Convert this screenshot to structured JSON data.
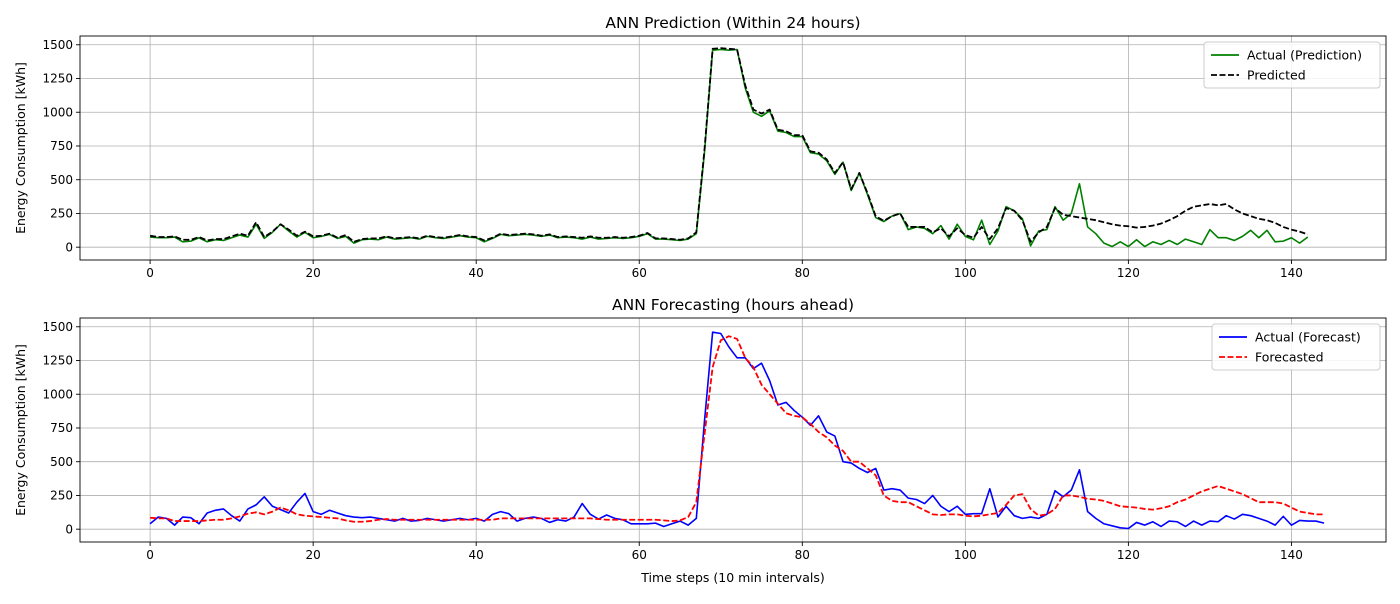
{
  "chart_data": [
    {
      "type": "line",
      "title": "ANN Prediction (Within 24 hours)",
      "xlabel": "",
      "ylabel": "Energy Consumption [kWh]",
      "xlim": [
        -8.6,
        151.6
      ],
      "ylim": [
        -95,
        1565
      ],
      "xticks": [
        0,
        20,
        40,
        60,
        80,
        100,
        120,
        140
      ],
      "yticks": [
        0,
        250,
        500,
        750,
        1000,
        1250,
        1500
      ],
      "grid": true,
      "legend_position": "top-right",
      "series": [
        {
          "name": "Actual (Prediction)",
          "color": "#008000",
          "dash": "solid",
          "values": [
            75,
            70,
            70,
            75,
            40,
            45,
            70,
            40,
            55,
            50,
            70,
            90,
            75,
            170,
            65,
            110,
            170,
            120,
            75,
            110,
            70,
            80,
            95,
            65,
            80,
            30,
            55,
            60,
            55,
            75,
            60,
            65,
            70,
            60,
            80,
            70,
            65,
            75,
            85,
            75,
            70,
            40,
            65,
            95,
            85,
            90,
            95,
            90,
            80,
            90,
            70,
            75,
            70,
            60,
            75,
            60,
            65,
            70,
            65,
            70,
            80,
            100,
            60,
            60,
            55,
            50,
            60,
            100,
            700,
            1460,
            1465,
            1460,
            1465,
            1180,
            1000,
            970,
            1010,
            860,
            850,
            820,
            820,
            700,
            690,
            640,
            540,
            630,
            420,
            550,
            390,
            220,
            190,
            230,
            250,
            130,
            150,
            140,
            100,
            160,
            60,
            170,
            80,
            55,
            200,
            20,
            120,
            300,
            270,
            210,
            10,
            120,
            130,
            300,
            200,
            250,
            470,
            150,
            100,
            30,
            5,
            40,
            5,
            55,
            5,
            40,
            20,
            50,
            20,
            60,
            40,
            20,
            130,
            70,
            70,
            50,
            80,
            125,
            70,
            125,
            40,
            45,
            70,
            30,
            75
          ]
        },
        {
          "name": "Predicted",
          "color": "#000000",
          "dash": "dashed",
          "values": [
            85,
            75,
            75,
            80,
            55,
            55,
            75,
            50,
            60,
            60,
            80,
            100,
            85,
            185,
            75,
            115,
            170,
            130,
            85,
            115,
            80,
            85,
            100,
            70,
            90,
            40,
            60,
            65,
            65,
            80,
            65,
            70,
            75,
            65,
            85,
            75,
            70,
            80,
            90,
            80,
            75,
            50,
            70,
            100,
            90,
            95,
            100,
            95,
            85,
            95,
            75,
            80,
            75,
            70,
            80,
            70,
            70,
            75,
            70,
            75,
            85,
            105,
            65,
            65,
            60,
            55,
            65,
            110,
            720,
            1470,
            1475,
            1470,
            1465,
            1200,
            1020,
            990,
            1020,
            870,
            860,
            830,
            830,
            710,
            700,
            650,
            550,
            630,
            430,
            550,
            400,
            230,
            195,
            230,
            250,
            150,
            150,
            150,
            110,
            140,
            80,
            140,
            90,
            70,
            150,
            60,
            140,
            290,
            270,
            200,
            40,
            110,
            150,
            290,
            240,
            230,
            220,
            210,
            200,
            185,
            170,
            160,
            155,
            145,
            150,
            160,
            175,
            200,
            230,
            270,
            300,
            310,
            320,
            310,
            320,
            280,
            250,
            230,
            210,
            200,
            180,
            150,
            130,
            115,
            95
          ]
        }
      ]
    },
    {
      "type": "line",
      "title": "ANN Forecasting (hours ahead)",
      "xlabel": "Time steps (10 min intervals)",
      "ylabel": "Energy Consumption [kWh]",
      "xlim": [
        -8.6,
        151.6
      ],
      "ylim": [
        -95,
        1565
      ],
      "xticks": [
        0,
        20,
        40,
        60,
        80,
        100,
        120,
        140
      ],
      "yticks": [
        0,
        250,
        500,
        750,
        1000,
        1250,
        1500
      ],
      "grid": true,
      "legend_position": "top-right",
      "series": [
        {
          "name": "Actual (Forecast)",
          "color": "#0000ff",
          "dash": "solid",
          "values": [
            40,
            90,
            80,
            30,
            90,
            85,
            40,
            120,
            140,
            150,
            100,
            60,
            150,
            180,
            240,
            170,
            145,
            120,
            200,
            265,
            130,
            110,
            140,
            120,
            100,
            90,
            85,
            90,
            80,
            70,
            60,
            80,
            60,
            65,
            80,
            70,
            60,
            70,
            80,
            70,
            80,
            60,
            110,
            130,
            115,
            60,
            80,
            90,
            80,
            50,
            70,
            60,
            90,
            190,
            110,
            75,
            105,
            80,
            70,
            40,
            40,
            40,
            45,
            20,
            40,
            60,
            30,
            80,
            800,
            1460,
            1450,
            1350,
            1270,
            1270,
            1190,
            1230,
            1100,
            920,
            940,
            880,
            830,
            770,
            840,
            720,
            690,
            500,
            490,
            450,
            420,
            450,
            290,
            300,
            290,
            230,
            220,
            190,
            250,
            170,
            130,
            170,
            110,
            115,
            115,
            300,
            90,
            170,
            100,
            80,
            90,
            80,
            110,
            285,
            240,
            290,
            440,
            130,
            80,
            40,
            25,
            10,
            5,
            50,
            30,
            55,
            20,
            60,
            55,
            20,
            60,
            30,
            60,
            55,
            100,
            75,
            110,
            100,
            80,
            60,
            30,
            95,
            30,
            65,
            60,
            60,
            45
          ]
        },
        {
          "name": "Forecasted",
          "color": "#ff0000",
          "dash": "dashed",
          "values": [
            85,
            80,
            80,
            60,
            60,
            60,
            60,
            65,
            70,
            70,
            80,
            95,
            115,
            125,
            110,
            130,
            160,
            140,
            110,
            100,
            95,
            90,
            85,
            80,
            65,
            55,
            55,
            60,
            70,
            75,
            70,
            70,
            70,
            70,
            70,
            70,
            70,
            70,
            70,
            70,
            70,
            70,
            70,
            80,
            80,
            80,
            80,
            80,
            80,
            80,
            80,
            80,
            80,
            80,
            80,
            75,
            70,
            70,
            70,
            70,
            70,
            70,
            70,
            65,
            60,
            65,
            90,
            200,
            700,
            1200,
            1400,
            1430,
            1410,
            1270,
            1200,
            1070,
            1000,
            930,
            860,
            840,
            830,
            780,
            720,
            680,
            620,
            580,
            500,
            500,
            450,
            400,
            250,
            210,
            200,
            200,
            170,
            140,
            110,
            105,
            110,
            110,
            100,
            95,
            100,
            110,
            120,
            180,
            250,
            260,
            150,
            100,
            110,
            150,
            250,
            250,
            240,
            225,
            220,
            210,
            190,
            170,
            165,
            160,
            150,
            145,
            155,
            170,
            200,
            220,
            250,
            280,
            300,
            320,
            300,
            280,
            260,
            230,
            200,
            200,
            200,
            190,
            160,
            130,
            120,
            110,
            110
          ]
        }
      ]
    }
  ]
}
